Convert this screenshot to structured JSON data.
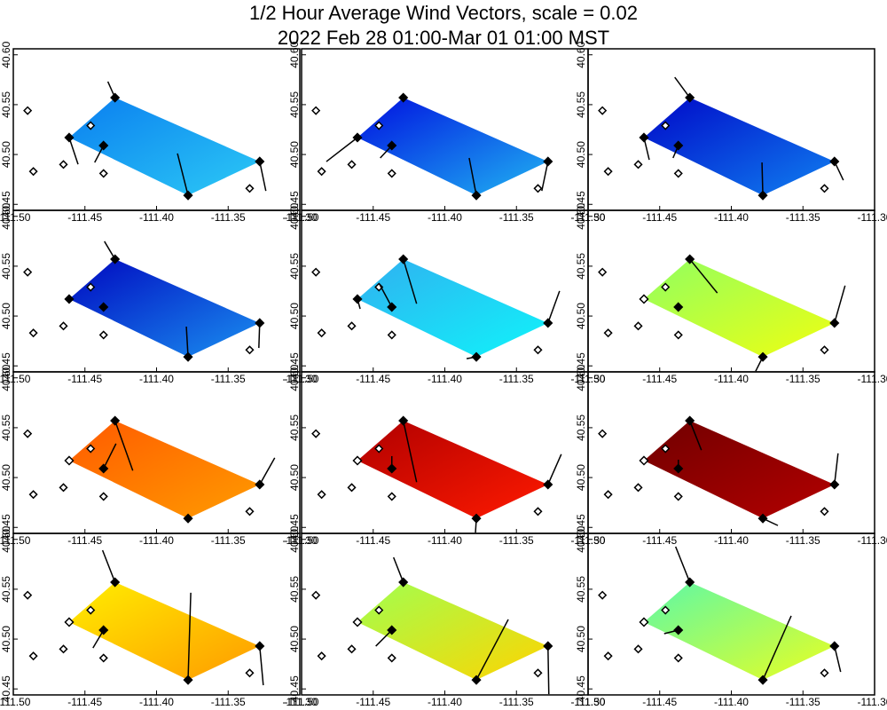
{
  "chart_data": {
    "type": "vector-map",
    "title": "1/2 Hour Average Wind Vectors, scale =  0.02",
    "subtitle": "2022 Feb 28 01:00-Mar 01 01:00 MST",
    "xlim": [
      -111.5,
      -111.3
    ],
    "ylim": [
      40.444,
      40.606
    ],
    "xticks": [
      {
        "value": -111.5,
        "label": "-111.50"
      },
      -111.45,
      {
        "value": -111.4,
        "label": "-111.40"
      },
      -111.35,
      {
        "value": -111.3,
        "label": "-111.30"
      }
    ],
    "yticks": [
      40.45,
      {
        "value": 40.5,
        "label": "40.50"
      },
      40.55,
      {
        "value": 40.6,
        "label": "40.60"
      }
    ],
    "vector_stations": {
      "x": [
        -111.461,
        -111.429,
        -111.328,
        -111.378,
        -111.437
      ],
      "y": [
        40.517,
        40.557,
        40.493,
        40.459,
        40.509
      ]
    },
    "other_stations": {
      "x": [
        -111.49,
        -111.486,
        -111.465,
        -111.446,
        -111.437,
        -111.335
      ],
      "y": [
        40.544,
        40.483,
        40.49,
        40.529,
        40.481,
        40.466
      ]
    },
    "panels": [
      {
        "colors": [
          "#0a7ef0",
          "#2ccaf5"
        ],
        "u": [
          0.0062,
          -0.005,
          0.0043,
          -0.0074,
          -0.0062
        ],
        "v": [
          -0.0268,
          0.0161,
          -0.0295,
          0.042,
          -0.017
        ]
      },
      {
        "colors": [
          "#0010e0",
          "#20b4f2"
        ],
        "u": [
          -0.0217,
          0,
          -0.0043,
          -0.005,
          -0.0081
        ],
        "v": [
          -0.0241,
          0.0027,
          -0.0295,
          0.0375,
          -0.0125
        ]
      },
      {
        "colors": [
          "#0008c8",
          "#1080f0"
        ],
        "u": [
          0.0037,
          -0.0105,
          0.0062,
          -0.0006,
          -0.0037
        ],
        "v": [
          -0.0223,
          0.0205,
          -0.0188,
          0.033,
          -0.0125
        ]
      },
      {
        "colors": [
          "#0008c0",
          "#1a90f0"
        ],
        "u": [
          -0.0019,
          -0.0074,
          -0.0006,
          -0.0012,
          0
        ],
        "v": [
          -0.0018,
          0.0179,
          -0.025,
          0.0304,
          -0.0018
        ]
      },
      {
        "colors": [
          "#30b0f0",
          "#10f4fa"
        ],
        "u": [
          0.0019,
          0.0093,
          0.0081,
          -0.0068,
          -0.0087
        ],
        "v": [
          -0.0098,
          -0.0446,
          0.0321,
          -0.0018,
          0.0232
        ]
      },
      {
        "colors": [
          "#90ff60",
          "#f0ff10"
        ],
        "u": [
          null,
          0.0192,
          0.0074,
          -0.005,
          0.0019
        ],
        "v": [
          null,
          -0.0339,
          0.0375,
          -0.0143,
          0
        ]
      },
      {
        "colors": [
          "#ff5a00",
          "#ff9c00"
        ],
        "u": [
          null,
          0.0124,
          0.0105,
          0,
          0.0087
        ],
        "v": [
          null,
          -0.05,
          0.0268,
          -0.0018,
          0.025
        ]
      },
      {
        "colors": [
          "#b00000",
          "#ff1a00"
        ],
        "u": [
          null,
          0.0093,
          0.0093,
          -0.0006,
          0
        ],
        "v": [
          null,
          -0.0616,
          0.0304,
          -0.0143,
          0.0125
        ]
      },
      {
        "colors": [
          "#700000",
          "#b40000"
        ],
        "u": [
          null,
          0.0081,
          0.0025,
          0.0105,
          0
        ],
        "v": [
          null,
          -0.0295,
          0.0313,
          -0.0071,
          0.0089
        ]
      },
      {
        "colors": [
          "#ffee00",
          "#ff9a00"
        ],
        "u": [
          null,
          -0.0087,
          0.0025,
          0.0019,
          -0.0074
        ],
        "v": [
          null,
          0.0321,
          -0.0393,
          0.0875,
          -0.0179
        ]
      },
      {
        "colors": [
          "#a0ff50",
          "#ffd400"
        ],
        "u": [
          null,
          -0.0068,
          0.0006,
          0.0223,
          -0.0112
        ],
        "v": [
          null,
          0.025,
          -0.0482,
          0.0607,
          -0.0161
        ]
      },
      {
        "colors": [
          "#5cf8a8",
          "#eaff20"
        ],
        "u": [
          null,
          -0.0099,
          0.0043,
          0.0198,
          -0.0099
        ],
        "v": [
          null,
          0.0357,
          -0.0259,
          0.0643,
          -0.0036
        ]
      }
    ]
  }
}
